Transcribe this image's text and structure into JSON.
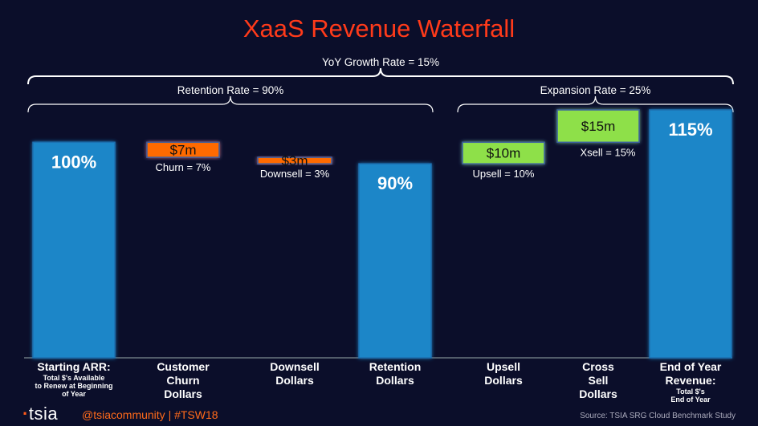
{
  "title": "XaaS Revenue Waterfall",
  "chart_data": {
    "type": "bar",
    "subtype": "waterfall",
    "ylim": [
      0,
      115
    ],
    "categories": [
      {
        "label": "Starting ARR:",
        "sub": [
          "Total $'s Available",
          "to Renew at Beginning",
          "of Year"
        ]
      },
      {
        "label": "Customer\nChurn\nDollars",
        "sub": []
      },
      {
        "label": "Downsell\nDollars",
        "sub": []
      },
      {
        "label": "Retention\nDollars",
        "sub": []
      },
      {
        "label": "Upsell\nDollars",
        "sub": []
      },
      {
        "label": "Cross\nSell\nDollars",
        "sub": []
      },
      {
        "label": "End of Year\nRevenue:",
        "sub": [
          "Total $'s",
          "End of Year"
        ]
      }
    ],
    "bars": [
      {
        "kind": "total",
        "base": 0,
        "top": 100,
        "label": "100%",
        "note": ""
      },
      {
        "kind": "decrease",
        "base": 93,
        "top": 100,
        "label": "$7m",
        "note": "Churn = 7%"
      },
      {
        "kind": "decrease",
        "base": 90,
        "top": 93,
        "label": "$3m",
        "note": "Downsell = 3%"
      },
      {
        "kind": "total",
        "base": 0,
        "top": 90,
        "label": "90%",
        "note": ""
      },
      {
        "kind": "increase",
        "base": 90,
        "top": 100,
        "label": "$10m",
        "note": "Upsell = 10%"
      },
      {
        "kind": "increase",
        "base": 100,
        "top": 115,
        "label": "$15m",
        "note": "Xsell = 15%"
      },
      {
        "kind": "total",
        "base": 0,
        "top": 115,
        "label": "115%",
        "note": ""
      }
    ],
    "brackets": [
      {
        "label": "YoY Growth Rate = 15%",
        "from": 0,
        "to": 6
      },
      {
        "label": "Retention Rate = 90%",
        "from": 0,
        "to": 3
      },
      {
        "label": "Expansion Rate = 25%",
        "from": 4,
        "to": 6
      }
    ],
    "colors": {
      "total": "#1a86c8",
      "decrease": "#ff6a00",
      "increase": "#8ee04a",
      "background": "#0b0e2a",
      "title": "#ff3a1a"
    }
  },
  "footer": {
    "logo": "tsia",
    "handle": "@tsiacommunity | #TSW18",
    "source": "Source:  TSIA SRG Cloud Benchmark Study"
  }
}
